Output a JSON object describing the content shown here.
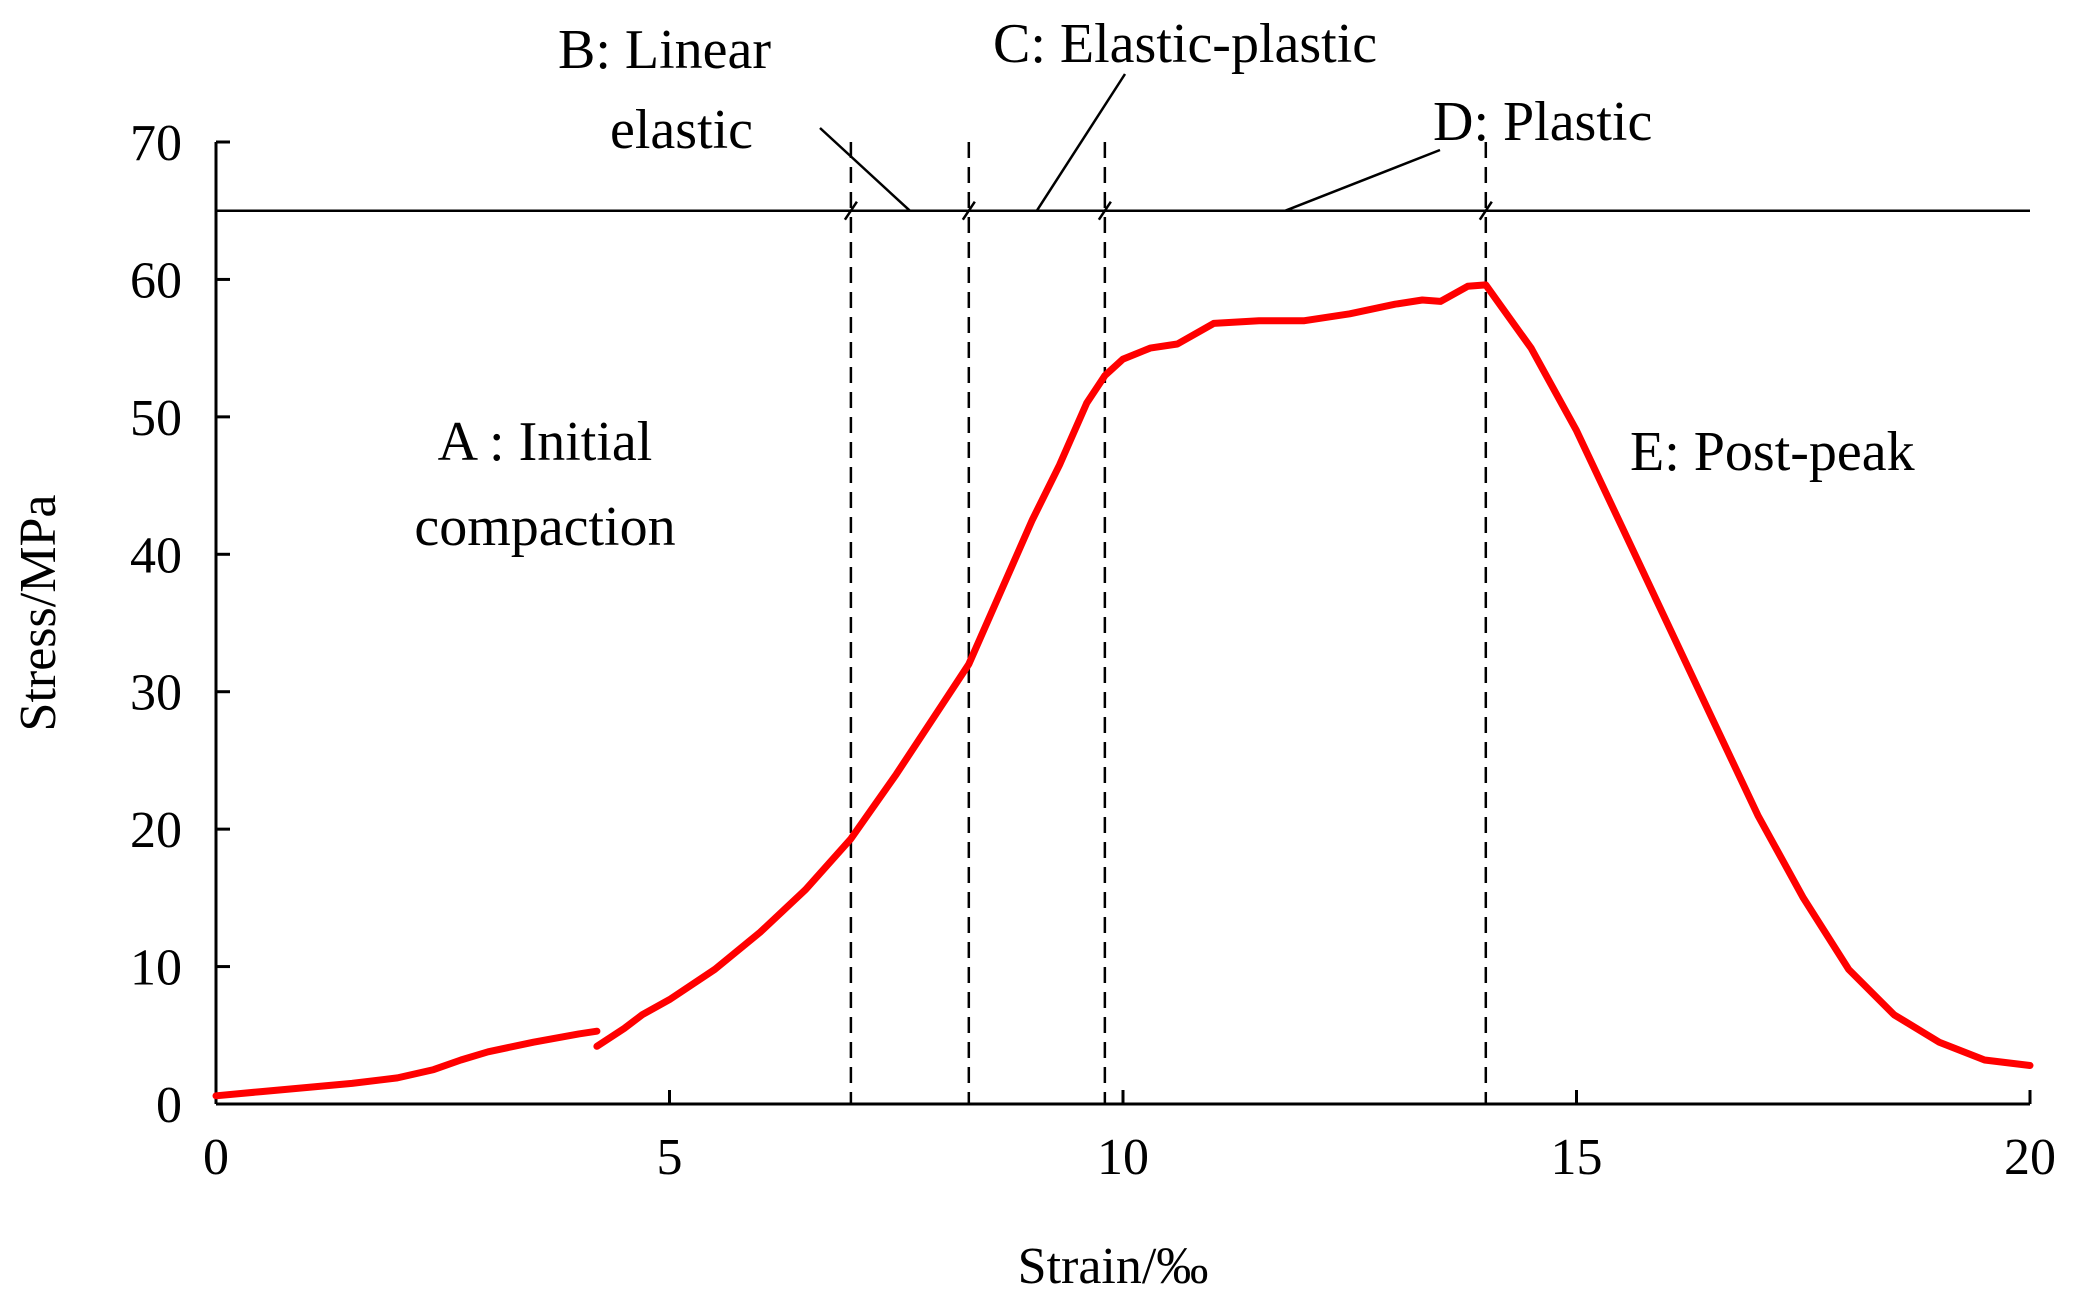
{
  "chart_data": {
    "type": "line",
    "xlabel": "Strain/‰",
    "ylabel": "Stress/MPa",
    "xlim": [
      0,
      20
    ],
    "ylim": [
      0,
      70
    ],
    "x_ticks": [
      "0",
      "5",
      "10",
      "15",
      "20"
    ],
    "y_ticks": [
      "0",
      "10",
      "20",
      "30",
      "40",
      "50",
      "60",
      "70"
    ],
    "grid": false,
    "colors": {
      "series": "#ff0000",
      "axes": "#000000"
    },
    "series": [
      {
        "segments": [
          {
            "x": [
              0,
              0.5,
              1.0,
              1.5,
              2.0,
              2.4,
              2.7,
              3.0,
              3.5,
              4.0,
              4.2
            ],
            "y": [
              0.6,
              0.9,
              1.2,
              1.5,
              1.9,
              2.5,
              3.2,
              3.8,
              4.5,
              5.1,
              5.3
            ]
          },
          {
            "x": [
              4.2,
              4.5,
              4.7,
              5.0,
              5.5,
              6.0,
              6.5,
              7.0,
              7.5,
              8.0,
              8.3,
              8.6,
              9.0,
              9.3,
              9.6,
              9.8,
              10.0,
              10.3,
              10.6,
              11.0,
              11.5,
              12.0,
              12.5,
              13.0,
              13.3,
              13.5,
              13.8,
              14.0,
              14.5,
              15.0,
              15.5,
              16.0,
              16.5,
              17.0,
              17.5,
              18.0,
              18.5,
              19.0,
              19.5,
              20.0
            ],
            "y": [
              4.2,
              5.5,
              6.5,
              7.6,
              9.8,
              12.5,
              15.6,
              19.3,
              24.0,
              29.0,
              32.0,
              36.5,
              42.5,
              46.5,
              51.0,
              53.0,
              54.2,
              55.0,
              55.3,
              56.8,
              57.0,
              57.0,
              57.5,
              58.2,
              58.5,
              58.4,
              59.5,
              59.6,
              55.0,
              49.0,
              42.0,
              35.0,
              28.0,
              21.0,
              15.0,
              9.8,
              6.5,
              4.5,
              3.2,
              2.8
            ]
          }
        ]
      }
    ],
    "stage_boundaries": [
      7.0,
      8.3,
      9.8,
      14.0
    ],
    "reference_line_y": 65,
    "annotations": {
      "a_line1": "A : Initial",
      "a_line2": "compaction",
      "b_line1": "B:  Linear",
      "b_line2": "elastic",
      "c_label": "C: Elastic-plastic",
      "d_label": "D: Plastic",
      "e_label": "E: Post-peak"
    }
  }
}
